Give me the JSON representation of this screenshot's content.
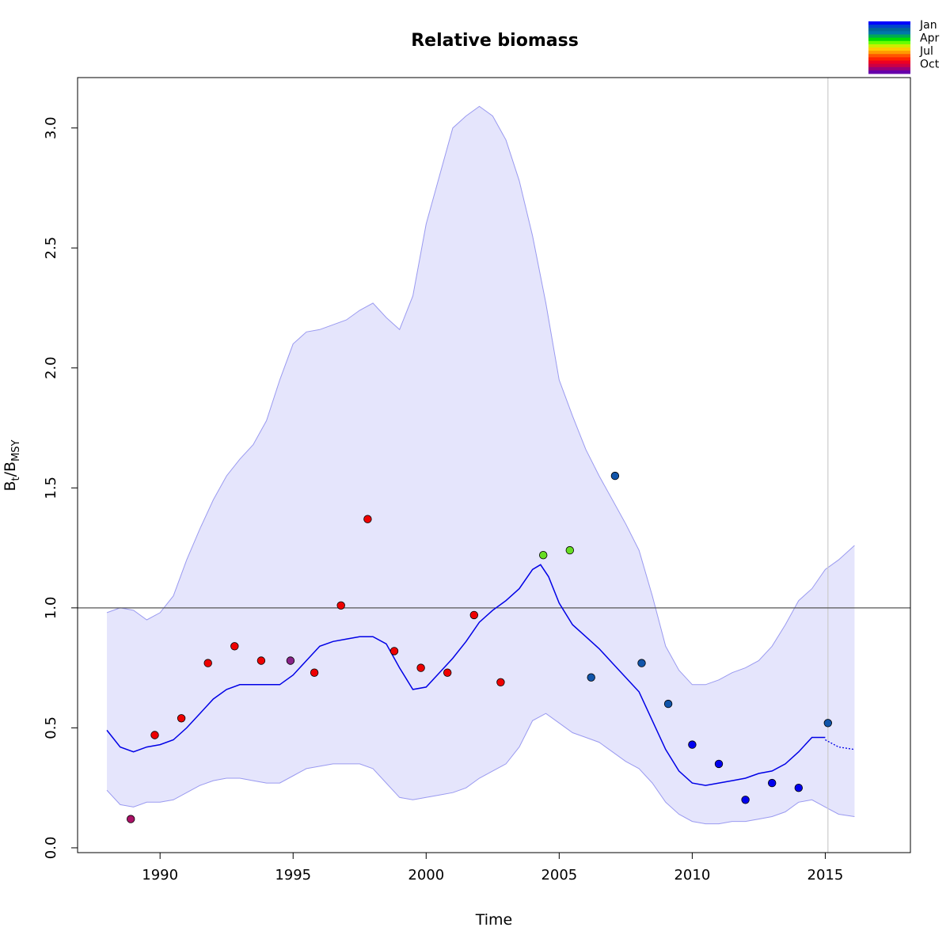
{
  "chart_data": {
    "type": "scatter",
    "title": "Relative biomass",
    "xlabel": "Time",
    "ylabel": {
      "base": "B",
      "sub1": "t",
      "slash": "/",
      "base2": "B",
      "sub2": "MSY"
    },
    "xlim": [
      1986.9,
      2018.2
    ],
    "ylim": [
      -0.02,
      3.21
    ],
    "x_ticks": [
      1990,
      1995,
      2000,
      2005,
      2010,
      2015
    ],
    "x_tick_labels": [
      "1990",
      "1995",
      "2000",
      "2005",
      "2010",
      "2015"
    ],
    "y_ticks": [
      0.0,
      0.5,
      1.0,
      1.5,
      2.0,
      2.5,
      3.0
    ],
    "y_tick_labels": [
      "0.0",
      "0.5",
      "1.0",
      "1.5",
      "2.0",
      "2.5",
      "3.0"
    ],
    "reference_line_y": 1.0,
    "vertical_line_x": 2015.1,
    "colors": {
      "band_fill": "#e5e5fc",
      "band_stroke": "#9a9af0",
      "line": "#0000e6",
      "ref_line": "#555555",
      "vline": "#cccccc"
    },
    "legend": {
      "position": "top-right",
      "labels": [
        "Jan",
        "Apr",
        "Jul",
        "Oct"
      ],
      "colors": [
        "#0000ff",
        "#0044cc",
        "#006699",
        "#0077aa",
        "#00aa55",
        "#00dd00",
        "#66ff00",
        "#ccee00",
        "#ffcc00",
        "#ff9900",
        "#ff5500",
        "#ff2200",
        "#ee0022",
        "#cc0044",
        "#990077",
        "#6600aa"
      ]
    },
    "series": [
      {
        "kind": "estimate_line",
        "x": [
          1988.0,
          1988.5,
          1989.0,
          1989.5,
          1990.0,
          1990.5,
          1991.0,
          1991.5,
          1992.0,
          1992.5,
          1993.0,
          1993.5,
          1994.0,
          1994.5,
          1995.0,
          1995.5,
          1996.0,
          1996.5,
          1997.0,
          1997.5,
          1998.0,
          1998.5,
          1999.0,
          1999.5,
          2000.0,
          2000.5,
          2001.0,
          2001.5,
          2002.0,
          2002.5,
          2003.0,
          2003.5,
          2004.0,
          2004.3,
          2004.6,
          2005.0,
          2005.5,
          2006.0,
          2006.5,
          2007.0,
          2007.5,
          2008.0,
          2008.5,
          2009.0,
          2009.5,
          2010.0,
          2010.5,
          2011.0,
          2011.5,
          2012.0,
          2012.5,
          2013.0,
          2013.5,
          2014.0,
          2014.5,
          2015.0
        ],
        "y": [
          0.49,
          0.42,
          0.4,
          0.42,
          0.43,
          0.45,
          0.5,
          0.56,
          0.62,
          0.66,
          0.68,
          0.68,
          0.68,
          0.68,
          0.72,
          0.78,
          0.84,
          0.86,
          0.87,
          0.88,
          0.88,
          0.85,
          0.75,
          0.66,
          0.67,
          0.73,
          0.79,
          0.86,
          0.94,
          0.99,
          1.03,
          1.08,
          1.16,
          1.18,
          1.13,
          1.02,
          0.93,
          0.88,
          0.83,
          0.77,
          0.71,
          0.65,
          0.53,
          0.41,
          0.32,
          0.27,
          0.26,
          0.27,
          0.28,
          0.29,
          0.31,
          0.32,
          0.35,
          0.4,
          0.46,
          0.46
        ]
      },
      {
        "kind": "forecast_line",
        "x": [
          2015.0,
          2015.5,
          2016.1
        ],
        "y": [
          0.45,
          0.42,
          0.41
        ]
      },
      {
        "kind": "ci_upper",
        "x": [
          1988.0,
          1988.5,
          1989.0,
          1989.5,
          1990.0,
          1990.5,
          1991.0,
          1991.5,
          1992.0,
          1992.5,
          1993.0,
          1993.5,
          1994.0,
          1994.5,
          1995.0,
          1995.5,
          1996.0,
          1996.5,
          1997.0,
          1997.5,
          1998.0,
          1998.5,
          1999.0,
          1999.5,
          2000.0,
          2000.5,
          2001.0,
          2001.5,
          2002.0,
          2002.5,
          2003.0,
          2003.5,
          2004.0,
          2004.5,
          2005.0,
          2005.5,
          2006.0,
          2006.5,
          2007.0,
          2007.5,
          2008.0,
          2008.5,
          2009.0,
          2009.5,
          2010.0,
          2010.5,
          2011.0,
          2011.5,
          2012.0,
          2012.5,
          2013.0,
          2013.5,
          2014.0,
          2014.5,
          2015.0,
          2015.5,
          2016.1
        ],
        "y": [
          0.98,
          1.0,
          0.99,
          0.95,
          0.98,
          1.05,
          1.2,
          1.33,
          1.45,
          1.55,
          1.62,
          1.68,
          1.78,
          1.95,
          2.1,
          2.15,
          2.16,
          2.18,
          2.2,
          2.24,
          2.27,
          2.21,
          2.16,
          2.3,
          2.6,
          2.8,
          3.0,
          3.05,
          3.09,
          3.05,
          2.95,
          2.78,
          2.55,
          2.27,
          1.95,
          1.8,
          1.66,
          1.55,
          1.45,
          1.35,
          1.24,
          1.05,
          0.84,
          0.74,
          0.68,
          0.68,
          0.7,
          0.73,
          0.75,
          0.78,
          0.84,
          0.93,
          1.03,
          1.08,
          1.16,
          1.2,
          1.26
        ]
      },
      {
        "kind": "ci_lower",
        "x": [
          1988.0,
          1988.5,
          1989.0,
          1989.5,
          1990.0,
          1990.5,
          1991.0,
          1991.5,
          1992.0,
          1992.5,
          1993.0,
          1993.5,
          1994.0,
          1994.5,
          1995.0,
          1995.5,
          1996.0,
          1996.5,
          1997.0,
          1997.5,
          1998.0,
          1998.5,
          1999.0,
          1999.5,
          2000.0,
          2000.5,
          2001.0,
          2001.5,
          2002.0,
          2002.5,
          2003.0,
          2003.5,
          2004.0,
          2004.5,
          2005.0,
          2005.5,
          2006.0,
          2006.5,
          2007.0,
          2007.5,
          2008.0,
          2008.5,
          2009.0,
          2009.5,
          2010.0,
          2010.5,
          2011.0,
          2011.5,
          2012.0,
          2012.5,
          2013.0,
          2013.5,
          2014.0,
          2014.5,
          2015.0,
          2015.5,
          2016.1
        ],
        "y": [
          0.24,
          0.18,
          0.17,
          0.19,
          0.19,
          0.2,
          0.23,
          0.26,
          0.28,
          0.29,
          0.29,
          0.28,
          0.27,
          0.27,
          0.3,
          0.33,
          0.34,
          0.35,
          0.35,
          0.35,
          0.33,
          0.27,
          0.21,
          0.2,
          0.21,
          0.22,
          0.23,
          0.25,
          0.29,
          0.32,
          0.35,
          0.42,
          0.53,
          0.56,
          0.52,
          0.48,
          0.46,
          0.44,
          0.4,
          0.36,
          0.33,
          0.27,
          0.19,
          0.14,
          0.11,
          0.1,
          0.1,
          0.11,
          0.11,
          0.12,
          0.13,
          0.15,
          0.19,
          0.2,
          0.17,
          0.14,
          0.13
        ]
      },
      {
        "kind": "observations",
        "x": [
          1988.9,
          1989.8,
          1990.8,
          1991.8,
          1992.8,
          1993.8,
          1994.9,
          1995.8,
          1996.8,
          1997.8,
          1998.8,
          1999.8,
          2000.8,
          2001.8,
          2002.8,
          2004.4,
          2005.4,
          2006.2,
          2007.1,
          2008.1,
          2009.1,
          2010.0,
          2011.0,
          2012.0,
          2013.0,
          2014.0,
          2015.1
        ],
        "y": [
          0.12,
          0.47,
          0.54,
          0.77,
          0.84,
          0.78,
          0.78,
          0.73,
          1.01,
          1.37,
          0.82,
          0.75,
          0.73,
          0.97,
          0.69,
          1.22,
          1.24,
          0.71,
          1.55,
          0.77,
          0.6,
          0.43,
          0.35,
          0.2,
          0.27,
          0.25,
          0.52
        ],
        "colors": [
          "#aa1166",
          "#ee0000",
          "#ee0000",
          "#ee0000",
          "#ee0000",
          "#ee0000",
          "#882288",
          "#ee0000",
          "#ee0000",
          "#ee0000",
          "#ee0000",
          "#ee0000",
          "#ee0000",
          "#ee0000",
          "#ee0000",
          "#66dd22",
          "#66dd22",
          "#1155aa",
          "#1155aa",
          "#1155aa",
          "#1155aa",
          "#0000ee",
          "#0000ee",
          "#0000ee",
          "#0000ee",
          "#0000ee",
          "#1155aa"
        ]
      }
    ]
  }
}
